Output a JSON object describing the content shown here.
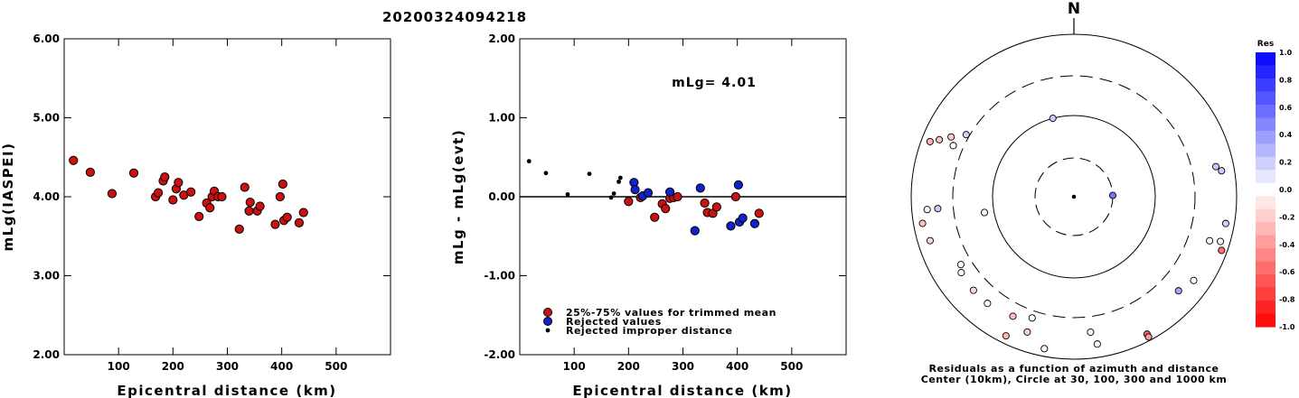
{
  "title": "20200324094218",
  "colors": {
    "red": "#cc1111",
    "blue": "#1122cc",
    "black": "#000000"
  },
  "chart_data": [
    {
      "type": "scatter",
      "xlabel": "Epicentral distance (km)",
      "ylabel": "mLg(IASPEI)",
      "xlim": [
        0,
        600
      ],
      "ylim": [
        2.0,
        6.0
      ],
      "xticks": [
        "100",
        "200",
        "300",
        "400",
        "500"
      ],
      "yticks": [
        "2.00",
        "3.00",
        "4.00",
        "5.00",
        "6.00"
      ],
      "series": [
        {
          "color": "red",
          "points": [
            [
              17,
              4.46
            ],
            [
              48,
              4.31
            ],
            [
              88,
              4.04
            ],
            [
              128,
              4.3
            ],
            [
              168,
              4.0
            ],
            [
              173,
              4.05
            ],
            [
              182,
              4.2
            ],
            [
              185,
              4.25
            ],
            [
              200,
              3.96
            ],
            [
              206,
              4.1
            ],
            [
              210,
              4.18
            ],
            [
              220,
              4.02
            ],
            [
              233,
              4.06
            ],
            [
              248,
              3.75
            ],
            [
              262,
              3.92
            ],
            [
              268,
              3.86
            ],
            [
              272,
              4.0
            ],
            [
              276,
              4.07
            ],
            [
              283,
              4.0
            ],
            [
              290,
              4.0
            ],
            [
              322,
              3.59
            ],
            [
              332,
              4.12
            ],
            [
              340,
              3.82
            ],
            [
              342,
              3.93
            ],
            [
              355,
              3.82
            ],
            [
              360,
              3.88
            ],
            [
              388,
              3.65
            ],
            [
              397,
              4.0
            ],
            [
              402,
              4.16
            ],
            [
              404,
              3.7
            ],
            [
              410,
              3.74
            ],
            [
              432,
              3.67
            ],
            [
              440,
              3.8
            ]
          ]
        }
      ]
    },
    {
      "type": "scatter",
      "xlabel": "Epicentral distance (km)",
      "ylabel": "mLg - mLg(evt)",
      "xlim": [
        0,
        600
      ],
      "ylim": [
        -2.0,
        2.0
      ],
      "xticks": [
        "100",
        "200",
        "300",
        "400",
        "500"
      ],
      "yticks": [
        "-2.00",
        "-1.00",
        "0.00",
        "1.00",
        "2.00"
      ],
      "annotation": "mLg= 4.01",
      "reference_line": 0,
      "series": [
        {
          "name": "25%-75% values for trimmed mean",
          "color": "red",
          "points": [
            [
              200,
              -0.06
            ],
            [
              222,
              -0.01
            ],
            [
              248,
              -0.26
            ],
            [
              262,
              -0.09
            ],
            [
              268,
              -0.15
            ],
            [
              276,
              -0.02
            ],
            [
              283,
              -0.01
            ],
            [
              290,
              0.0
            ],
            [
              340,
              -0.08
            ],
            [
              345,
              -0.2
            ],
            [
              355,
              -0.21
            ],
            [
              362,
              -0.13
            ],
            [
              397,
              0.0
            ],
            [
              440,
              -0.21
            ]
          ]
        },
        {
          "name": "Rejected values",
          "color": "blue",
          "points": [
            [
              210,
              0.18
            ],
            [
              212,
              0.09
            ],
            [
              226,
              0.01
            ],
            [
              236,
              0.05
            ],
            [
              276,
              0.06
            ],
            [
              322,
              -0.43
            ],
            [
              332,
              0.11
            ],
            [
              388,
              -0.37
            ],
            [
              402,
              0.15
            ],
            [
              404,
              -0.32
            ],
            [
              410,
              -0.27
            ],
            [
              432,
              -0.34
            ]
          ]
        },
        {
          "name": "Rejected improper distance",
          "color": "black",
          "points": [
            [
              17,
              0.45
            ],
            [
              48,
              0.3
            ],
            [
              88,
              0.03
            ],
            [
              128,
              0.29
            ],
            [
              168,
              -0.01
            ],
            [
              173,
              0.04
            ],
            [
              182,
              0.19
            ],
            [
              185,
              0.24
            ]
          ]
        }
      ]
    }
  ],
  "polar": {
    "north_label": "N",
    "caption_line1": "Residuals as a function of azimuth and distance",
    "caption_line2": "Center (10km), Circle at 30, 100, 300 and 1000 km",
    "points": [
      {
        "res": 0.22,
        "dist_km": 100,
        "az": 345
      },
      {
        "res": 0.55,
        "dist_km": 30,
        "az": 88
      },
      {
        "res": 0.18,
        "dist_km": 330,
        "az": 300
      },
      {
        "res": -0.2,
        "dist_km": 470,
        "az": 296
      },
      {
        "res": 0.0,
        "dist_km": 400,
        "az": 293
      },
      {
        "res": -0.25,
        "dist_km": 620,
        "az": 293
      },
      {
        "res": -0.3,
        "dist_km": 780,
        "az": 291
      },
      {
        "res": 0.0,
        "dist_km": 130,
        "az": 260
      },
      {
        "res": 0.0,
        "dist_km": 640,
        "az": 265
      },
      {
        "res": 0.2,
        "dist_km": 470,
        "az": 265
      },
      {
        "res": -0.25,
        "dist_km": 770,
        "az": 260
      },
      {
        "res": -0.18,
        "dist_km": 700,
        "az": 253
      },
      {
        "res": 0.0,
        "dist_km": 410,
        "az": 239
      },
      {
        "res": 0.0,
        "dist_km": 460,
        "az": 236
      },
      {
        "res": -0.15,
        "dist_km": 480,
        "az": 227
      },
      {
        "res": 0.0,
        "dist_km": 480,
        "az": 219
      },
      {
        "res": -0.25,
        "dist_km": 440,
        "az": 207
      },
      {
        "res": -0.3,
        "dist_km": 800,
        "az": 206
      },
      {
        "res": 0.0,
        "dist_km": 370,
        "az": 199
      },
      {
        "res": -0.2,
        "dist_km": 570,
        "az": 199
      },
      {
        "res": 0.0,
        "dist_km": 800,
        "az": 191
      },
      {
        "res": 0.0,
        "dist_km": 470,
        "az": 173
      },
      {
        "res": 0.0,
        "dist_km": 680,
        "az": 171
      },
      {
        "res": -0.6,
        "dist_km": 820,
        "az": 152
      },
      {
        "res": -0.4,
        "dist_km": 900,
        "az": 152
      },
      {
        "res": 0.35,
        "dist_km": 530,
        "az": 132
      },
      {
        "res": 0.0,
        "dist_km": 620,
        "az": 125
      },
      {
        "res": -0.55,
        "dist_km": 850,
        "az": 110
      },
      {
        "res": 0.0,
        "dist_km": 760,
        "az": 107
      },
      {
        "res": 0.0,
        "dist_km": 560,
        "az": 108
      },
      {
        "res": 0.2,
        "dist_km": 780,
        "az": 100
      },
      {
        "res": 0.2,
        "dist_km": 690,
        "az": 80
      },
      {
        "res": 0.22,
        "dist_km": 600,
        "az": 78
      }
    ]
  },
  "colorbar": {
    "label": "Res",
    "ticks": [
      "1.0",
      "0.8",
      "0.6",
      "0.4",
      "0.2",
      "0.0",
      "-0.2",
      "-0.4",
      "-0.6",
      "-0.8",
      "-1.0"
    ]
  }
}
